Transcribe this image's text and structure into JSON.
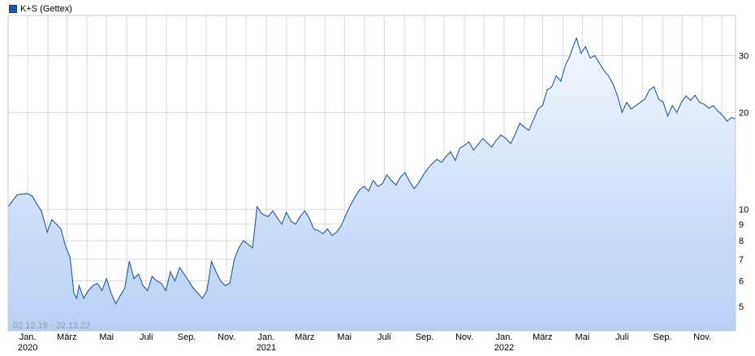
{
  "legend": {
    "label": "K+S (Gettex)"
  },
  "range_label": "02.12.19 - 22.12.22",
  "colors": {
    "line": "#1f5aa6",
    "fill_top": "#f3f7fe",
    "fill_bottom": "#b8cff5",
    "grid": "#d9d9d9"
  },
  "chart_data": {
    "type": "area",
    "title": "",
    "xlabel": "",
    "ylabel": "",
    "y_scale": "log",
    "ylim": [
      4.2,
      40
    ],
    "x_range": [
      "2019-12-02",
      "2022-12-22"
    ],
    "grid": true,
    "legend_position": "top-left",
    "y_axis_position": "right",
    "y_ticks": [
      5,
      6,
      7,
      8,
      9,
      10,
      20,
      30
    ],
    "x_ticks": [
      {
        "date": "2020-01-01",
        "label": "Jan.",
        "year": "2020"
      },
      {
        "date": "2020-03-01",
        "label": "März",
        "year": ""
      },
      {
        "date": "2020-05-01",
        "label": "Mai",
        "year": ""
      },
      {
        "date": "2020-07-01",
        "label": "Juli",
        "year": ""
      },
      {
        "date": "2020-09-01",
        "label": "Sep.",
        "year": ""
      },
      {
        "date": "2020-11-01",
        "label": "Nov.",
        "year": ""
      },
      {
        "date": "2021-01-01",
        "label": "Jan.",
        "year": "2021"
      },
      {
        "date": "2021-03-01",
        "label": "März",
        "year": ""
      },
      {
        "date": "2021-05-01",
        "label": "Mai",
        "year": ""
      },
      {
        "date": "2021-07-01",
        "label": "Juli",
        "year": ""
      },
      {
        "date": "2021-09-01",
        "label": "Sep.",
        "year": ""
      },
      {
        "date": "2021-11-01",
        "label": "Nov.",
        "year": ""
      },
      {
        "date": "2022-01-01",
        "label": "Jan.",
        "year": "2022"
      },
      {
        "date": "2022-03-01",
        "label": "März",
        "year": ""
      },
      {
        "date": "2022-05-01",
        "label": "Mai",
        "year": ""
      },
      {
        "date": "2022-07-01",
        "label": "Juli",
        "year": ""
      },
      {
        "date": "2022-09-01",
        "label": "Sep.",
        "year": ""
      },
      {
        "date": "2022-11-01",
        "label": "Nov.",
        "year": ""
      }
    ],
    "series": [
      {
        "points": [
          [
            "2019-12-02",
            10.2
          ],
          [
            "2019-12-16",
            11.1
          ],
          [
            "2019-12-31",
            11.2
          ],
          [
            "2020-01-08",
            11.0
          ],
          [
            "2020-01-15",
            10.4
          ],
          [
            "2020-01-22",
            9.9
          ],
          [
            "2020-01-31",
            8.5
          ],
          [
            "2020-02-07",
            9.3
          ],
          [
            "2020-02-14",
            9.0
          ],
          [
            "2020-02-21",
            8.7
          ],
          [
            "2020-02-28",
            7.7
          ],
          [
            "2020-03-06",
            7.1
          ],
          [
            "2020-03-12",
            5.5
          ],
          [
            "2020-03-16",
            5.3
          ],
          [
            "2020-03-20",
            5.8
          ],
          [
            "2020-03-27",
            5.3
          ],
          [
            "2020-04-03",
            5.6
          ],
          [
            "2020-04-10",
            5.8
          ],
          [
            "2020-04-17",
            5.9
          ],
          [
            "2020-04-24",
            5.6
          ],
          [
            "2020-05-01",
            6.1
          ],
          [
            "2020-05-08",
            5.5
          ],
          [
            "2020-05-15",
            5.1
          ],
          [
            "2020-05-22",
            5.4
          ],
          [
            "2020-05-29",
            5.7
          ],
          [
            "2020-06-05",
            6.9
          ],
          [
            "2020-06-12",
            6.1
          ],
          [
            "2020-06-19",
            6.3
          ],
          [
            "2020-06-26",
            5.8
          ],
          [
            "2020-07-03",
            5.6
          ],
          [
            "2020-07-10",
            6.2
          ],
          [
            "2020-07-17",
            6.0
          ],
          [
            "2020-07-24",
            5.9
          ],
          [
            "2020-07-31",
            5.6
          ],
          [
            "2020-08-07",
            6.4
          ],
          [
            "2020-08-14",
            6.0
          ],
          [
            "2020-08-21",
            6.6
          ],
          [
            "2020-08-28",
            6.3
          ],
          [
            "2020-09-04",
            6.0
          ],
          [
            "2020-09-11",
            5.7
          ],
          [
            "2020-09-18",
            5.5
          ],
          [
            "2020-09-25",
            5.3
          ],
          [
            "2020-10-02",
            5.6
          ],
          [
            "2020-10-09",
            6.9
          ],
          [
            "2020-10-16",
            6.4
          ],
          [
            "2020-10-23",
            6.0
          ],
          [
            "2020-10-30",
            5.8
          ],
          [
            "2020-11-06",
            5.9
          ],
          [
            "2020-11-13",
            7.0
          ],
          [
            "2020-11-20",
            7.6
          ],
          [
            "2020-11-27",
            8.0
          ],
          [
            "2020-12-04",
            7.8
          ],
          [
            "2020-12-11",
            7.6
          ],
          [
            "2020-12-18",
            10.2
          ],
          [
            "2020-12-25",
            9.7
          ],
          [
            "2021-01-04",
            9.5
          ],
          [
            "2021-01-11",
            9.9
          ],
          [
            "2021-01-18",
            9.4
          ],
          [
            "2021-01-25",
            9.0
          ],
          [
            "2021-02-01",
            9.8
          ],
          [
            "2021-02-08",
            9.2
          ],
          [
            "2021-02-15",
            9.0
          ],
          [
            "2021-02-22",
            9.5
          ],
          [
            "2021-03-01",
            9.9
          ],
          [
            "2021-03-08",
            9.4
          ],
          [
            "2021-03-15",
            8.7
          ],
          [
            "2021-03-22",
            8.6
          ],
          [
            "2021-03-29",
            8.4
          ],
          [
            "2021-04-05",
            8.7
          ],
          [
            "2021-04-12",
            8.3
          ],
          [
            "2021-04-19",
            8.5
          ],
          [
            "2021-04-26",
            8.9
          ],
          [
            "2021-05-03",
            9.6
          ],
          [
            "2021-05-10",
            10.3
          ],
          [
            "2021-05-17",
            10.9
          ],
          [
            "2021-05-24",
            11.5
          ],
          [
            "2021-05-31",
            11.8
          ],
          [
            "2021-06-07",
            11.4
          ],
          [
            "2021-06-14",
            12.3
          ],
          [
            "2021-06-21",
            11.8
          ],
          [
            "2021-06-28",
            12.0
          ],
          [
            "2021-07-05",
            12.8
          ],
          [
            "2021-07-12",
            12.3
          ],
          [
            "2021-07-19",
            11.9
          ],
          [
            "2021-07-26",
            12.6
          ],
          [
            "2021-08-02",
            13.0
          ],
          [
            "2021-08-09",
            12.2
          ],
          [
            "2021-08-16",
            11.6
          ],
          [
            "2021-08-23",
            12.1
          ],
          [
            "2021-08-30",
            12.8
          ],
          [
            "2021-09-06",
            13.4
          ],
          [
            "2021-09-13",
            13.9
          ],
          [
            "2021-09-20",
            14.3
          ],
          [
            "2021-09-27",
            14.0
          ],
          [
            "2021-10-04",
            14.6
          ],
          [
            "2021-10-11",
            15.1
          ],
          [
            "2021-10-18",
            14.2
          ],
          [
            "2021-10-25",
            15.5
          ],
          [
            "2021-11-01",
            15.8
          ],
          [
            "2021-11-08",
            16.2
          ],
          [
            "2021-11-15",
            15.3
          ],
          [
            "2021-11-22",
            15.9
          ],
          [
            "2021-11-29",
            16.6
          ],
          [
            "2021-12-06",
            16.1
          ],
          [
            "2021-12-13",
            15.6
          ],
          [
            "2021-12-20",
            16.4
          ],
          [
            "2021-12-27",
            17.0
          ],
          [
            "2022-01-04",
            16.6
          ],
          [
            "2022-01-11",
            16.0
          ],
          [
            "2022-01-18",
            17.1
          ],
          [
            "2022-01-25",
            18.5
          ],
          [
            "2022-02-01",
            18.0
          ],
          [
            "2022-02-08",
            17.6
          ],
          [
            "2022-02-15",
            19.0
          ],
          [
            "2022-02-22",
            20.5
          ],
          [
            "2022-03-01",
            21.0
          ],
          [
            "2022-03-08",
            23.5
          ],
          [
            "2022-03-15",
            24.0
          ],
          [
            "2022-03-22",
            26.0
          ],
          [
            "2022-03-29",
            25.0
          ],
          [
            "2022-04-05",
            28.0
          ],
          [
            "2022-04-12",
            30.0
          ],
          [
            "2022-04-18",
            32.5
          ],
          [
            "2022-04-22",
            34.0
          ],
          [
            "2022-04-29",
            30.5
          ],
          [
            "2022-05-06",
            32.0
          ],
          [
            "2022-05-13",
            29.5
          ],
          [
            "2022-05-20",
            30.0
          ],
          [
            "2022-05-27",
            28.5
          ],
          [
            "2022-06-03",
            27.0
          ],
          [
            "2022-06-10",
            26.0
          ],
          [
            "2022-06-17",
            24.5
          ],
          [
            "2022-06-24",
            22.5
          ],
          [
            "2022-07-01",
            20.0
          ],
          [
            "2022-07-08",
            21.5
          ],
          [
            "2022-07-15",
            20.5
          ],
          [
            "2022-07-22",
            21.0
          ],
          [
            "2022-07-29",
            21.5
          ],
          [
            "2022-08-05",
            22.0
          ],
          [
            "2022-08-12",
            23.5
          ],
          [
            "2022-08-19",
            24.0
          ],
          [
            "2022-08-26",
            22.0
          ],
          [
            "2022-09-02",
            21.5
          ],
          [
            "2022-09-09",
            19.5
          ],
          [
            "2022-09-16",
            21.0
          ],
          [
            "2022-09-23",
            20.0
          ],
          [
            "2022-09-30",
            21.5
          ],
          [
            "2022-10-07",
            22.5
          ],
          [
            "2022-10-14",
            21.8
          ],
          [
            "2022-10-21",
            22.6
          ],
          [
            "2022-10-28",
            21.5
          ],
          [
            "2022-11-04",
            21.2
          ],
          [
            "2022-11-11",
            20.6
          ],
          [
            "2022-11-18",
            21.0
          ],
          [
            "2022-11-25",
            20.2
          ],
          [
            "2022-12-02",
            19.6
          ],
          [
            "2022-12-09",
            18.8
          ],
          [
            "2022-12-16",
            19.3
          ],
          [
            "2022-12-22",
            19.1
          ]
        ]
      }
    ]
  }
}
